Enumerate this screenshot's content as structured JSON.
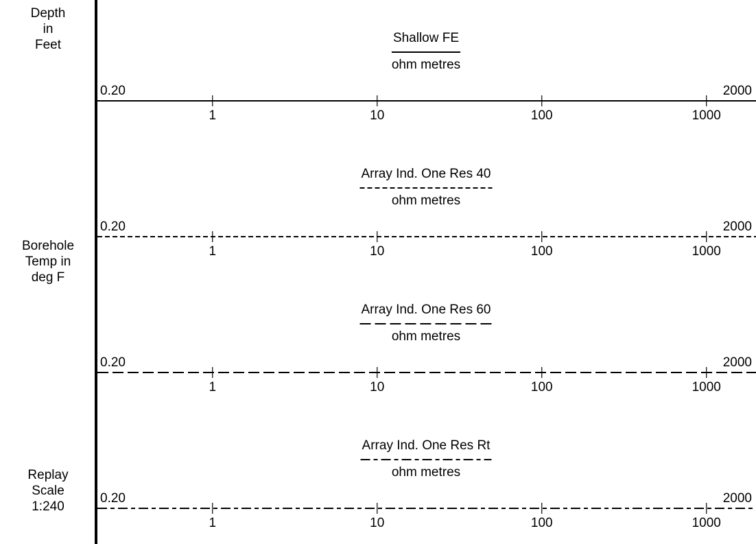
{
  "left_panel": {
    "depth_label": "Depth\nin\nFeet",
    "temp_label": "Borehole\nTemp in\ndeg F",
    "scale_label": "Replay\nScale\n1:240"
  },
  "chart_data": [
    {
      "type": "log-scale-header",
      "title": "Shallow FE",
      "unit": "ohm metres",
      "line_style": "solid",
      "scale": "logarithmic",
      "range": [
        0.2,
        2000
      ],
      "range_labels": [
        "0.20",
        "2000"
      ],
      "ticks": [
        1,
        10,
        100,
        1000
      ],
      "tick_labels": [
        "1",
        "10",
        "100",
        "1000"
      ]
    },
    {
      "type": "log-scale-header",
      "title": "Array Ind. One Res 40",
      "unit": "ohm metres",
      "line_style": "short-dash",
      "scale": "logarithmic",
      "range": [
        0.2,
        2000
      ],
      "range_labels": [
        "0.20",
        "2000"
      ],
      "ticks": [
        1,
        10,
        100,
        1000
      ],
      "tick_labels": [
        "1",
        "10",
        "100",
        "1000"
      ]
    },
    {
      "type": "log-scale-header",
      "title": "Array Ind. One Res 60",
      "unit": "ohm metres",
      "line_style": "long-dash",
      "scale": "logarithmic",
      "range": [
        0.2,
        2000
      ],
      "range_labels": [
        "0.20",
        "2000"
      ],
      "ticks": [
        1,
        10,
        100,
        1000
      ],
      "tick_labels": [
        "1",
        "10",
        "100",
        "1000"
      ]
    },
    {
      "type": "log-scale-header",
      "title": "Array Ind. One Res Rt",
      "unit": "ohm metres",
      "line_style": "dash-dot",
      "scale": "logarithmic",
      "range": [
        0.2,
        2000
      ],
      "range_labels": [
        "0.20",
        "2000"
      ],
      "ticks": [
        1,
        10,
        100,
        1000
      ],
      "tick_labels": [
        "1",
        "10",
        "100",
        "1000"
      ]
    }
  ]
}
